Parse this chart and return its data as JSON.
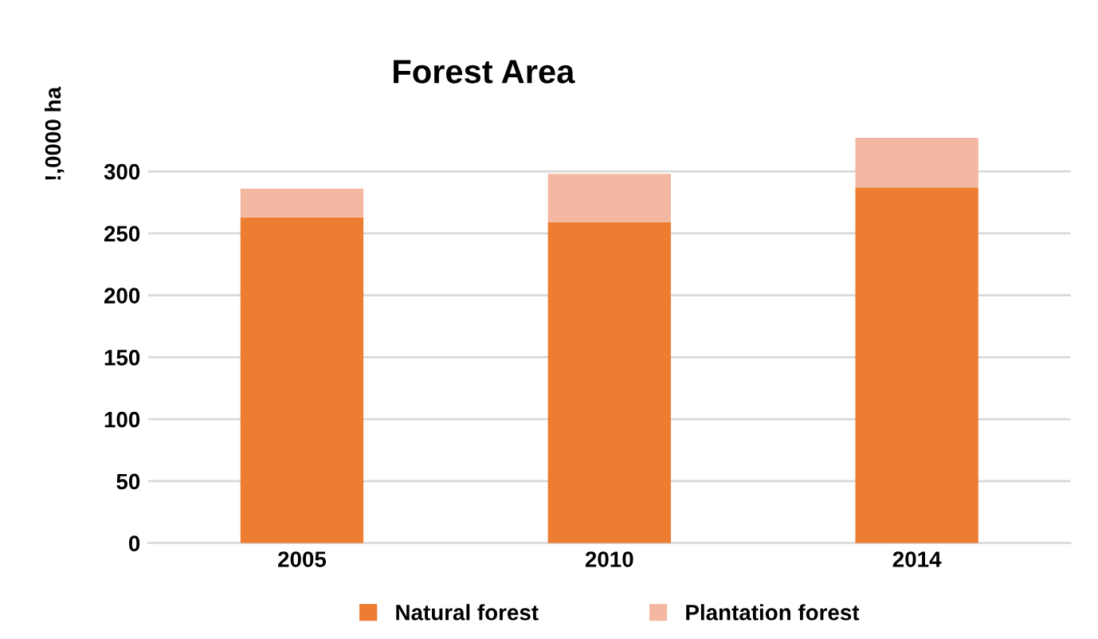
{
  "chart_data": {
    "type": "bar",
    "title": "Forest Area",
    "ylabel": "!,0000 ha",
    "stacked": true,
    "categories": [
      "2005",
      "2010",
      "2014"
    ],
    "series": [
      {
        "name": "Natural forest",
        "color": "#ed7d31",
        "values": [
          263,
          259,
          287
        ]
      },
      {
        "name": "Plantation forest",
        "color": "#f4b8a2",
        "values": [
          23,
          39,
          40
        ]
      }
    ],
    "ylim": [
      0,
      330
    ],
    "yticks": [
      0,
      50,
      100,
      150,
      200,
      250,
      300
    ],
    "grid": "y",
    "legend": "bottom"
  }
}
